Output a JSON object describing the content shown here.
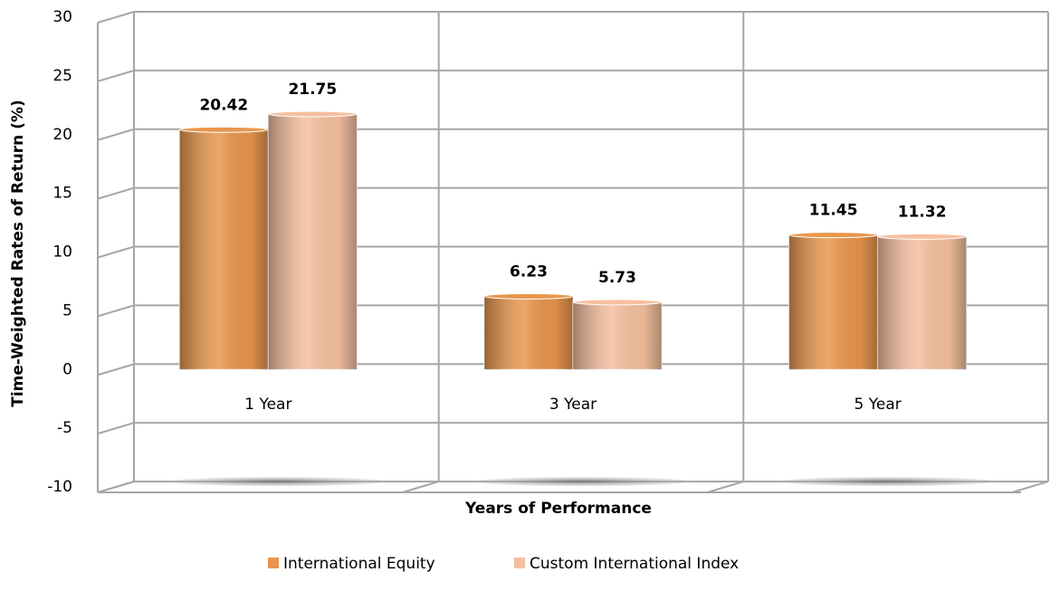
{
  "chart_data": {
    "type": "bar",
    "y_axis_label": "Time-Weighted Rates of Return (%)",
    "x_axis_label": "Years of Performance",
    "categories": [
      "1 Year",
      "3 Year",
      "5 Year"
    ],
    "series": [
      {
        "name": "International Equity",
        "color": "#e8964c",
        "values": [
          20.42,
          6.23,
          11.45
        ]
      },
      {
        "name": "Custom International Index",
        "color": "#f5bf9f",
        "values": [
          21.75,
          5.73,
          11.32
        ]
      }
    ],
    "ylim": [
      -10,
      30
    ],
    "yticks": [
      -10,
      -5,
      0,
      5,
      10,
      15,
      20,
      25,
      30
    ],
    "grid": true,
    "legend": "bottom"
  }
}
